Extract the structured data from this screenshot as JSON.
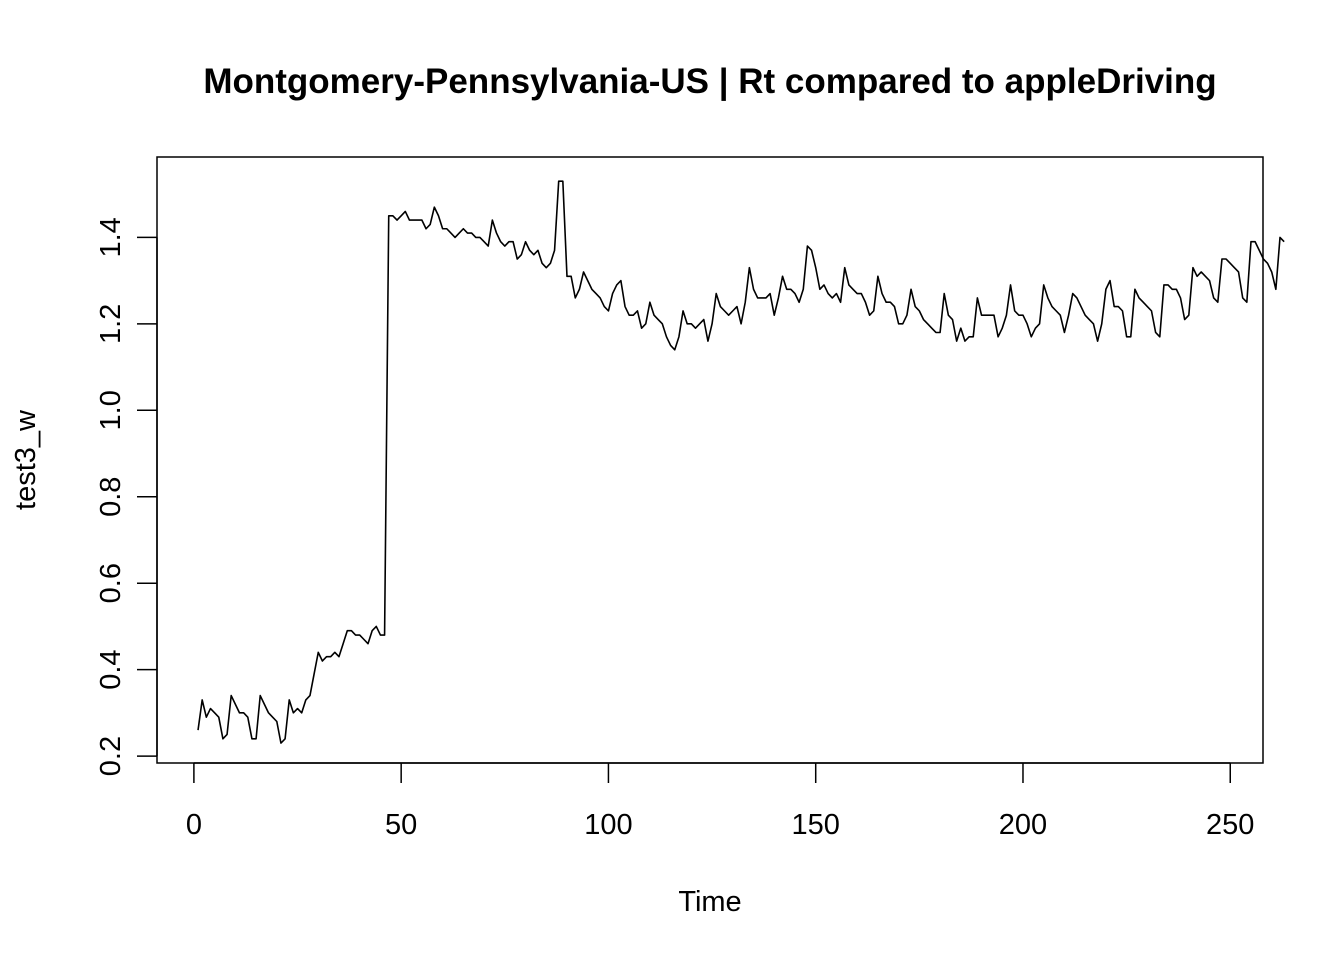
{
  "chart_data": {
    "type": "line",
    "title": "Montgomery-Pennsylvania-US | Rt compared to appleDriving",
    "xlabel": "Time",
    "ylabel": "test3_w",
    "xlim": [
      -8.9,
      257.9
    ],
    "ylim": [
      0.184,
      1.586
    ],
    "xticks": [
      0,
      50,
      100,
      150,
      200,
      250
    ],
    "yticks": [
      0.2,
      0.4,
      0.6,
      0.8,
      1.0,
      1.2,
      1.4
    ],
    "xtick_labels": [
      "0",
      "50",
      "100",
      "150",
      "200",
      "250"
    ],
    "ytick_labels": [
      "0.2",
      "0.4",
      "0.6",
      "0.8",
      "1.0",
      "1.2",
      "1.4"
    ],
    "line_color": "#000000",
    "series": [
      {
        "x_start": 1,
        "values": [
          0.26,
          0.33,
          0.29,
          0.31,
          0.3,
          0.29,
          0.24,
          0.25,
          0.34,
          0.32,
          0.3,
          0.3,
          0.29,
          0.24,
          0.24,
          0.34,
          0.32,
          0.3,
          0.29,
          0.28,
          0.23,
          0.24,
          0.33,
          0.3,
          0.31,
          0.3,
          0.33,
          0.34,
          0.39,
          0.44,
          0.42,
          0.43,
          0.43,
          0.44,
          0.43,
          0.46,
          0.49,
          0.49,
          0.48,
          0.48,
          0.47,
          0.46,
          0.49,
          0.5,
          0.48,
          0.48,
          1.45,
          1.45,
          1.44,
          1.45,
          1.46,
          1.44,
          1.44,
          1.44,
          1.44,
          1.42,
          1.43,
          1.47,
          1.45,
          1.42,
          1.42,
          1.41,
          1.4,
          1.41,
          1.42,
          1.41,
          1.41,
          1.4,
          1.4,
          1.39,
          1.38,
          1.44,
          1.41,
          1.39,
          1.38,
          1.39,
          1.39,
          1.35,
          1.36,
          1.39,
          1.37,
          1.36,
          1.37,
          1.34,
          1.33,
          1.34,
          1.37,
          1.53,
          1.53,
          1.31,
          1.31,
          1.26,
          1.28,
          1.32,
          1.3,
          1.28,
          1.27,
          1.26,
          1.24,
          1.23,
          1.27,
          1.29,
          1.3,
          1.24,
          1.22,
          1.22,
          1.23,
          1.19,
          1.2,
          1.25,
          1.22,
          1.21,
          1.2,
          1.17,
          1.15,
          1.14,
          1.17,
          1.23,
          1.2,
          1.2,
          1.19,
          1.2,
          1.21,
          1.16,
          1.2,
          1.27,
          1.24,
          1.23,
          1.22,
          1.23,
          1.24,
          1.2,
          1.25,
          1.33,
          1.28,
          1.26,
          1.26,
          1.26,
          1.27,
          1.22,
          1.26,
          1.31,
          1.28,
          1.28,
          1.27,
          1.25,
          1.28,
          1.38,
          1.37,
          1.33,
          1.28,
          1.29,
          1.27,
          1.26,
          1.27,
          1.25,
          1.33,
          1.29,
          1.28,
          1.27,
          1.27,
          1.25,
          1.22,
          1.23,
          1.31,
          1.27,
          1.25,
          1.25,
          1.24,
          1.2,
          1.2,
          1.22,
          1.28,
          1.24,
          1.23,
          1.21,
          1.2,
          1.19,
          1.18,
          1.18,
          1.27,
          1.22,
          1.21,
          1.16,
          1.19,
          1.16,
          1.17,
          1.17,
          1.26,
          1.22,
          1.22,
          1.22,
          1.22,
          1.17,
          1.19,
          1.22,
          1.29,
          1.23,
          1.22,
          1.22,
          1.2,
          1.17,
          1.19,
          1.2,
          1.29,
          1.26,
          1.24,
          1.23,
          1.22,
          1.18,
          1.22,
          1.27,
          1.26,
          1.24,
          1.22,
          1.21,
          1.2,
          1.16,
          1.2,
          1.28,
          1.3,
          1.24,
          1.24,
          1.23,
          1.17,
          1.17,
          1.28,
          1.26,
          1.25,
          1.24,
          1.23,
          1.18,
          1.17,
          1.29,
          1.29,
          1.28,
          1.28,
          1.26,
          1.21,
          1.22,
          1.33,
          1.31,
          1.32,
          1.31,
          1.3,
          1.26,
          1.25,
          1.35,
          1.35,
          1.34,
          1.33,
          1.32,
          1.26,
          1.25,
          1.39,
          1.39,
          1.37,
          1.35,
          1.34,
          1.32,
          1.28,
          1.4,
          1.39
        ]
      }
    ]
  }
}
